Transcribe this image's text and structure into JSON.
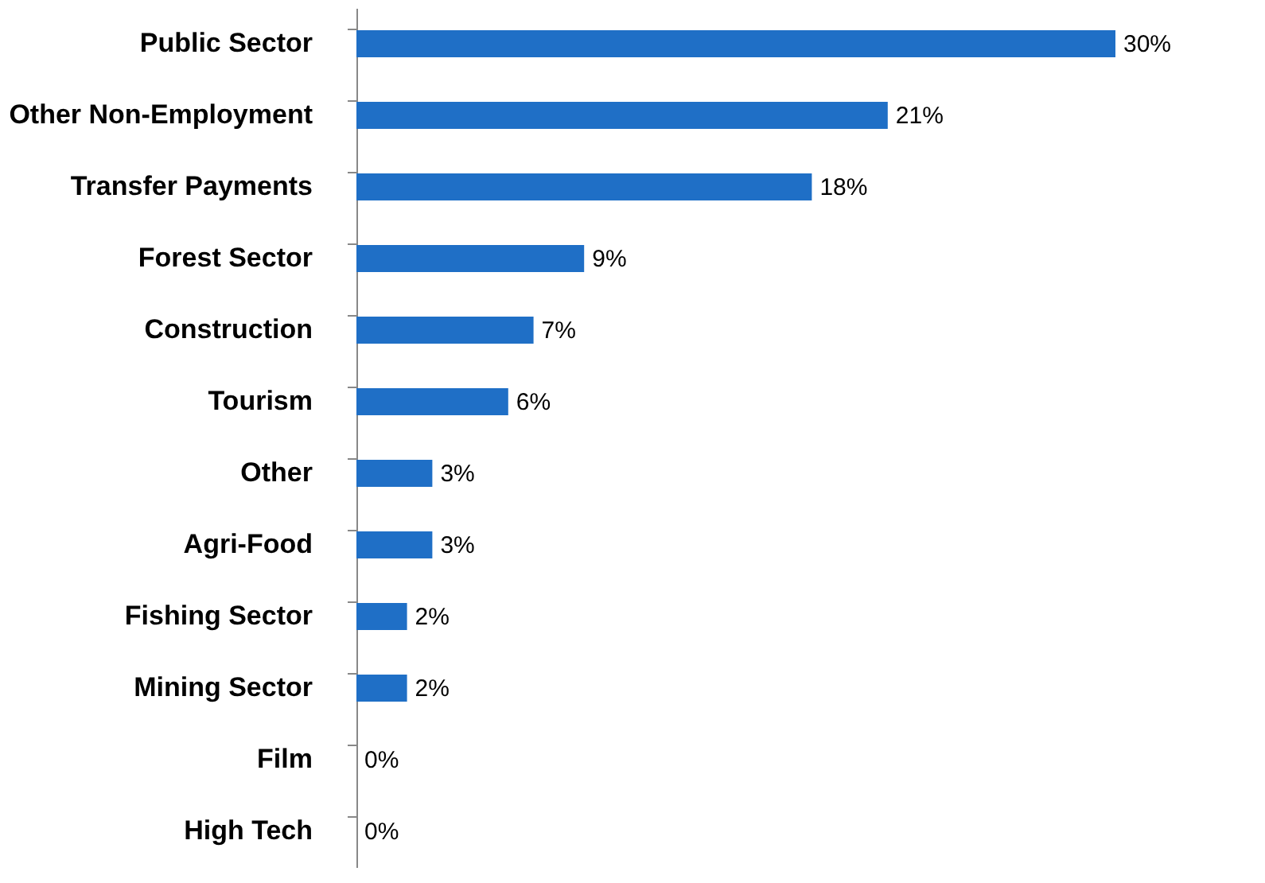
{
  "chart_data": {
    "type": "bar",
    "orientation": "horizontal",
    "categories": [
      "Public Sector",
      "Other Non-Employment",
      "Transfer Payments",
      "Forest Sector",
      "Construction",
      "Tourism",
      "Other",
      "Agri-Food",
      "Fishing Sector",
      "Mining Sector",
      "Film",
      "High Tech"
    ],
    "values": [
      30,
      21,
      18,
      9,
      7,
      6,
      3,
      3,
      2,
      2,
      0,
      0
    ],
    "value_labels": [
      "30%",
      "21%",
      "18%",
      "9%",
      "7%",
      "6%",
      "3%",
      "3%",
      "2%",
      "2%",
      "0%",
      "0%"
    ],
    "color": "#1f6fc6",
    "grid": false
  }
}
